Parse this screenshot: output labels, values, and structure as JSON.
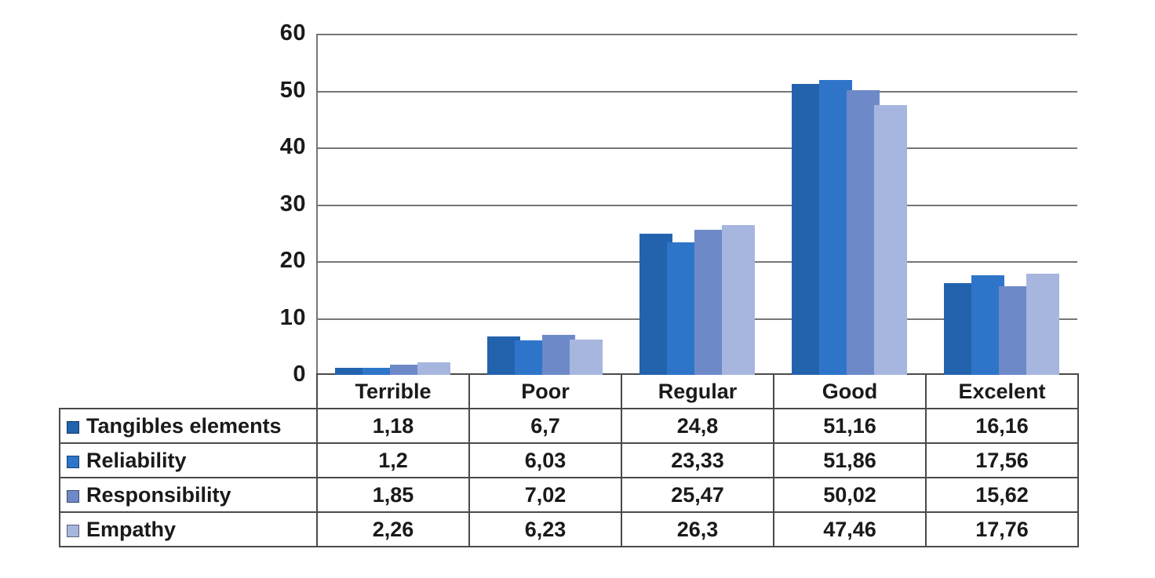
{
  "chart_data": {
    "type": "bar",
    "title": "",
    "xlabel": "",
    "ylabel": "",
    "categories": [
      "Terrible",
      "Poor",
      "Regular",
      "Good",
      "Excelent"
    ],
    "series": [
      {
        "name": "Tangibles elements",
        "color": "#2363AE",
        "values": [
          1.18,
          6.7,
          24.8,
          51.16,
          16.16
        ],
        "labels": [
          "1,18",
          "6,7",
          "24,8",
          "51,16",
          "16,16"
        ]
      },
      {
        "name": "Reliability",
        "color": "#2E75CA",
        "values": [
          1.2,
          6.03,
          23.33,
          51.86,
          17.56
        ],
        "labels": [
          "1,2",
          "6,03",
          "23,33",
          "51,86",
          "17,56"
        ]
      },
      {
        "name": "Responsibility",
        "color": "#6E89C8",
        "values": [
          1.85,
          7.02,
          25.47,
          50.02,
          15.62
        ],
        "labels": [
          "1,85",
          "7,02",
          "25,47",
          "50,02",
          "15,62"
        ]
      },
      {
        "name": "Empathy",
        "color": "#A6B6DF",
        "values": [
          2.26,
          6.23,
          26.3,
          47.46,
          17.76
        ],
        "labels": [
          "2,26",
          "6,23",
          "26,3",
          "47,46",
          "17,76"
        ]
      }
    ],
    "ylim": [
      0,
      60
    ],
    "yticks": [
      0,
      10,
      20,
      30,
      40,
      50,
      60
    ],
    "grid": "horizontal",
    "legend_position": "data-table-left-column",
    "axis_color": "#767676",
    "table_border_color": "#4a4a4a",
    "text_color": "#1a1a1a",
    "background_color": "#ffffff"
  }
}
